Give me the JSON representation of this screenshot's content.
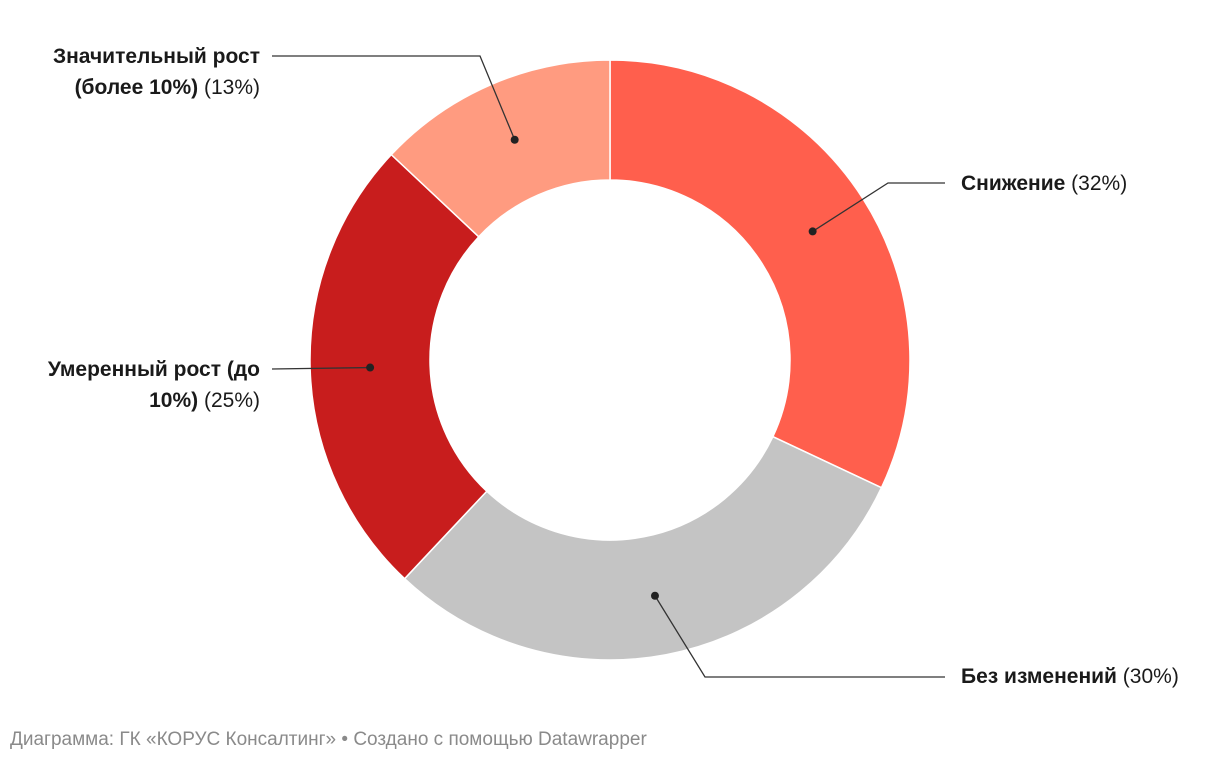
{
  "chart_data": {
    "type": "pie",
    "categories": [
      "Снижение",
      "Без изменений",
      "Умеренный рост (до 10%)",
      "Значительный рост (более 10%)"
    ],
    "values": [
      32,
      30,
      25,
      13
    ],
    "percent_labels": [
      "(32%)",
      "(30%)",
      "(25%)",
      "(13%)"
    ],
    "colors": [
      "#ff5f4d",
      "#c4c4c4",
      "#c81d1d",
      "#ff9b80"
    ],
    "donut": true,
    "start_angle": "12 o'clock, clockwise"
  },
  "footer": "Диаграмма: ГК «КОРУС Консалтинг» • Создано с помощью Datawrapper"
}
